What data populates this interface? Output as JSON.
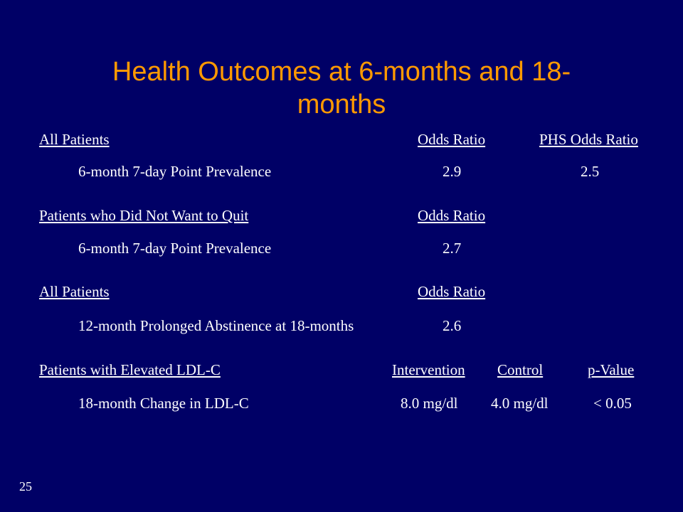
{
  "title": {
    "line1": "Health Outcomes at 6-months and 18-",
    "line2": "months"
  },
  "sections": [
    {
      "header": "All Patients",
      "columns": [
        "Odds Ratio",
        "PHS Odds Ratio"
      ],
      "row": {
        "label": "6-month 7-day Point Prevalence",
        "values": [
          "2.9",
          "2.5"
        ]
      }
    },
    {
      "header": "Patients who Did Not Want to Quit",
      "columns": [
        "Odds Ratio"
      ],
      "row": {
        "label": "6-month 7-day Point Prevalence",
        "values": [
          "2.7"
        ]
      }
    },
    {
      "header": "All Patients",
      "columns": [
        "Odds Ratio"
      ],
      "row": {
        "label": "12-month Prolonged Abstinence at 18-months",
        "values": [
          "2.6"
        ]
      }
    },
    {
      "header": "Patients with Elevated LDL-C",
      "columns": [
        "Intervention",
        "Control",
        "p-Value"
      ],
      "row": {
        "label": "18-month Change in LDL-C",
        "values": [
          "8.0 mg/dl",
          "4.0 mg/dl",
          "< 0.05"
        ]
      }
    }
  ],
  "slide_number": "25",
  "colors": {
    "background": "#000066",
    "title": "#ff9900",
    "text": "#ffffff"
  }
}
